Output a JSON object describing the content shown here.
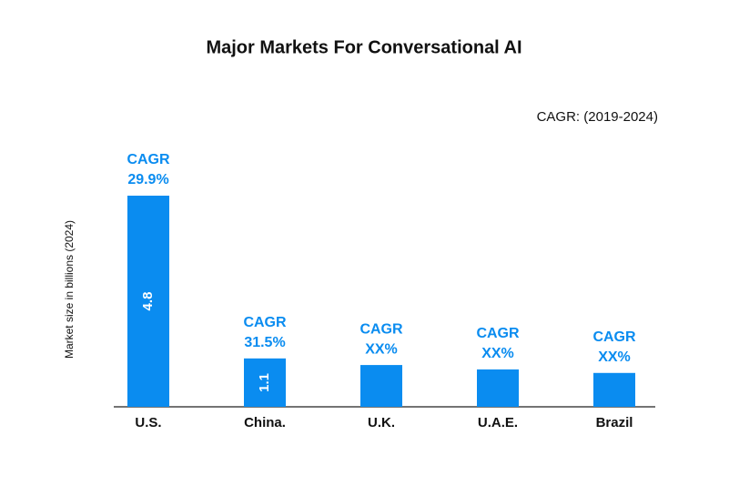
{
  "chart_data": {
    "type": "bar",
    "title": "Major Markets For Conversational AI",
    "subtitle": "CAGR: (2019-2024)",
    "y_label": "Market size in billions (2024)",
    "categories": [
      "U.S.",
      "China.",
      "U.K.",
      "U.A.E.",
      "Brazil"
    ],
    "values": [
      4.8,
      1.1,
      0.95,
      0.85,
      0.77
    ],
    "value_labels": [
      "4.8",
      "1.1",
      null,
      null,
      null
    ],
    "annotation_title": "CAGR",
    "annotations": [
      "29.9%",
      "31.5%",
      "XX%",
      "XX%",
      "XX%"
    ],
    "color": "#0a8cf0",
    "ylim": [
      0,
      4.8
    ]
  }
}
